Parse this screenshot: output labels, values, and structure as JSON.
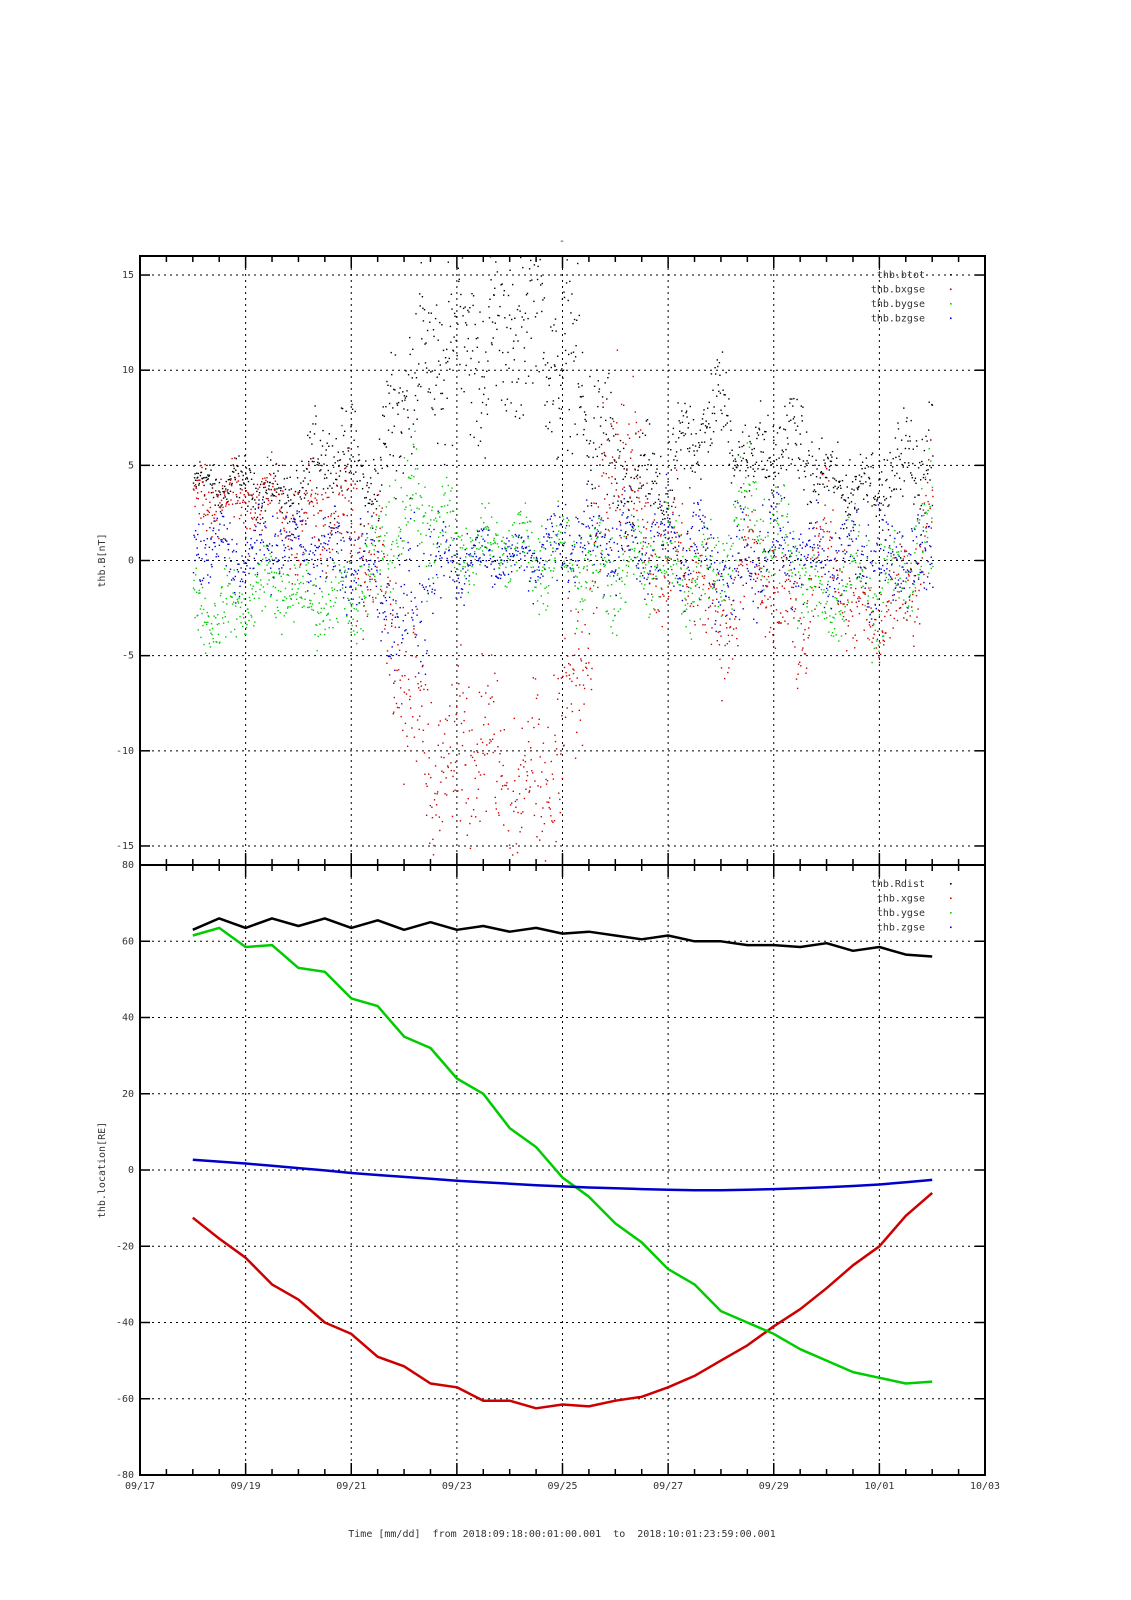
{
  "chart_data": [
    {
      "type": "scatter",
      "title": "-",
      "ylabel": "thb.B[nT]",
      "ylim": [
        -16,
        16
      ],
      "yticks": [
        -15,
        -10,
        -5,
        0,
        5,
        10,
        15
      ],
      "legend_position": "top-right",
      "x_days_from_0918": [
        0,
        0.5,
        1,
        1.5,
        2,
        2.5,
        3,
        3.5,
        4,
        4.5,
        5,
        5.5,
        6,
        6.5,
        7,
        7.5,
        8,
        8.5,
        9,
        9.5,
        10,
        10.5,
        11,
        11.5,
        12,
        12.5,
        13,
        13.5,
        14
      ],
      "series": [
        {
          "name": "thb.btot",
          "color": "#000000",
          "values": [
            4,
            4,
            4,
            3.5,
            3.5,
            6,
            5,
            4,
            10,
            10,
            12,
            11,
            12,
            13,
            10,
            8,
            4,
            4,
            4,
            7,
            8,
            5,
            6,
            6,
            4,
            4,
            4,
            5,
            6
          ],
          "spread": [
            1,
            1,
            1,
            1,
            1.5,
            2,
            2,
            2,
            4,
            4,
            4,
            4,
            4,
            4,
            4,
            4,
            3,
            2,
            2,
            2,
            2,
            2,
            2,
            2,
            1.5,
            1.5,
            1.5,
            2,
            2
          ]
        },
        {
          "name": "thb.bxgse",
          "color": "#cc0000",
          "values": [
            3,
            3.5,
            3,
            3.5,
            1,
            3,
            2,
            -1,
            -6,
            -10,
            -11,
            -10,
            -12,
            -12,
            -9,
            -3,
            8,
            2,
            0,
            0,
            -4,
            0,
            -2,
            -4,
            2,
            -3,
            -3,
            -2,
            3
          ],
          "spread": [
            1.5,
            1.5,
            1.5,
            1.5,
            2,
            2.5,
            3,
            3,
            4,
            4,
            4,
            4,
            4,
            4,
            4,
            4,
            4,
            3,
            2.5,
            2.5,
            2.5,
            2.5,
            2.5,
            2.5,
            2,
            2,
            2,
            2,
            2.5
          ]
        },
        {
          "name": "thb.bygse",
          "color": "#00cc00",
          "values": [
            -2,
            -3,
            -2,
            -1,
            -2,
            -2,
            -2,
            0,
            3,
            2,
            1,
            1,
            1,
            0,
            0,
            0,
            -1,
            0,
            0,
            -1,
            0,
            3,
            1,
            0,
            -3,
            0,
            -2,
            0,
            1
          ],
          "spread": [
            1.5,
            1.5,
            1.5,
            1.5,
            1.5,
            1.5,
            2,
            2.5,
            3,
            2.5,
            2,
            1.5,
            1.5,
            2,
            2,
            2,
            2,
            2,
            2,
            2,
            2.5,
            2.5,
            2.5,
            2,
            2,
            2,
            2,
            2,
            3
          ]
        },
        {
          "name": "thb.bzgse",
          "color": "#0000cc",
          "values": [
            1,
            0.5,
            0,
            1,
            1,
            0.5,
            0,
            -1,
            -3,
            -1,
            0,
            0.5,
            0,
            0.5,
            1,
            1,
            1,
            1,
            1,
            1,
            -1,
            0,
            1,
            0.5,
            0,
            0.5,
            0,
            0,
            0
          ],
          "spread": [
            1.5,
            1.5,
            1.5,
            1.5,
            1.5,
            1.5,
            2,
            2.5,
            3.5,
            2.5,
            1.5,
            1,
            1,
            1.5,
            2,
            2,
            2,
            2,
            2,
            2,
            2.5,
            2.5,
            2,
            2,
            2,
            2,
            2,
            2,
            2.5
          ]
        }
      ]
    },
    {
      "type": "line",
      "ylabel": "thb.location[RE]",
      "xlabel": "Time [mm/dd]  from 2018:09:18:00:01:00.001  to  2018:10:01:23:59:00.001",
      "ylim": [
        -80,
        80
      ],
      "yticks": [
        -80,
        -60,
        -40,
        -20,
        0,
        20,
        40,
        60,
        80
      ],
      "xlim_days_from_0917": [
        0,
        16
      ],
      "xtick_labels": [
        "09/17",
        "09/19",
        "09/21",
        "09/23",
        "09/25",
        "09/27",
        "09/29",
        "10/01",
        "10/03"
      ],
      "legend_position": "top-right",
      "x_days_from_0918": [
        0,
        0.5,
        1,
        1.5,
        2,
        2.5,
        3,
        3.5,
        4,
        4.5,
        5,
        5.5,
        6,
        6.5,
        7,
        7.5,
        8,
        8.5,
        9,
        9.5,
        10,
        10.5,
        11,
        11.5,
        12,
        12.5,
        13,
        13.5,
        14
      ],
      "series": [
        {
          "name": "thb.Rdist",
          "color": "#000000",
          "values": [
            63,
            66,
            63.5,
            66,
            64,
            66,
            63.5,
            65.5,
            63,
            65,
            63,
            64,
            62.5,
            63.5,
            62,
            62.5,
            61.5,
            60.5,
            61.5,
            60,
            60,
            59,
            59,
            58.5,
            59.5,
            57.5,
            58.5,
            56.5,
            56
          ]
        },
        {
          "name": "thb.xgse",
          "color": "#cc0000",
          "values": [
            -12.5,
            -18,
            -23,
            -30,
            -34,
            -40,
            -43,
            -49,
            -51.5,
            -56,
            -57,
            -60.5,
            -60.5,
            -62.5,
            -61.5,
            -62,
            -60.5,
            -59.5,
            -57,
            -54,
            -50,
            -46,
            -41,
            -36.5,
            -31,
            -25,
            -20,
            -12,
            -6
          ]
        },
        {
          "name": "thb.ygse",
          "color": "#00cc00",
          "values": [
            61.5,
            63.5,
            58.5,
            59,
            53,
            52,
            45,
            43,
            35,
            32,
            24,
            20,
            11,
            6,
            -2,
            -7,
            -14,
            -19,
            -26,
            -30,
            -37,
            -40,
            -43,
            -47,
            -50,
            -53,
            -54.5,
            -56,
            -55.5
          ]
        },
        {
          "name": "thb.zgse",
          "color": "#0000cc",
          "values": [
            2.7,
            2.2,
            1.7,
            1.1,
            0.5,
            -0.1,
            -0.8,
            -1.3,
            -1.8,
            -2.3,
            -2.8,
            -3.2,
            -3.6,
            -4,
            -4.3,
            -4.6,
            -4.8,
            -5,
            -5.2,
            -5.3,
            -5.3,
            -5.2,
            -5,
            -4.8,
            -4.5,
            -4.2,
            -3.8,
            -3.2,
            -2.6
          ]
        }
      ]
    }
  ]
}
